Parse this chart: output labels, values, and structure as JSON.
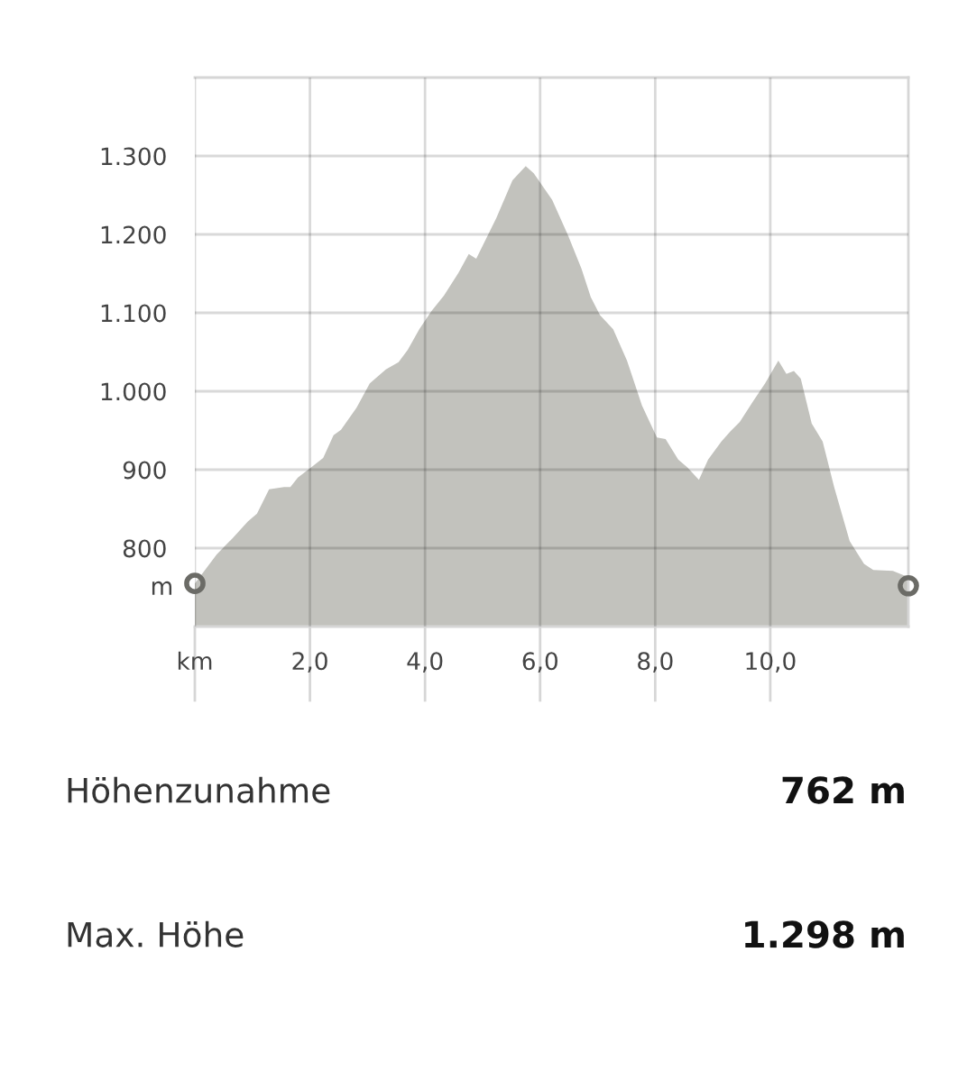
{
  "chart_data": {
    "type": "area",
    "ylabel": "m",
    "grid": true,
    "legend": false,
    "xlim": [
      0,
      12.4
    ],
    "ylim": [
      700,
      1400
    ],
    "xticks": [
      {
        "value": 0,
        "label": "km"
      },
      {
        "value": 2,
        "label": "2,0"
      },
      {
        "value": 4,
        "label": "4,0"
      },
      {
        "value": 6,
        "label": "6,0"
      },
      {
        "value": 8,
        "label": "8,0"
      },
      {
        "value": 10,
        "label": "10,0"
      }
    ],
    "yticks": [
      {
        "value": 800,
        "label": "800"
      },
      {
        "value": 900,
        "label": "900"
      },
      {
        "value": 1000,
        "label": "1.000"
      },
      {
        "value": 1100,
        "label": "1.100"
      },
      {
        "value": 1200,
        "label": "1.200"
      },
      {
        "value": 1300,
        "label": "1.300"
      }
    ],
    "series": [
      {
        "color": "#c2c2bd",
        "x": [
          0,
          0.38,
          0.66,
          0.92,
          1.08,
          1.29,
          1.55,
          1.66,
          1.79,
          2.02,
          2.23,
          2.41,
          2.54,
          2.81,
          3.04,
          3.32,
          3.54,
          3.7,
          3.9,
          4.11,
          4.33,
          4.58,
          4.76,
          4.89,
          5.24,
          5.52,
          5.75,
          5.89,
          6.21,
          6.49,
          6.72,
          6.88,
          7.04,
          7.27,
          7.51,
          7.77,
          8.03,
          8.18,
          8.4,
          8.56,
          8.76,
          8.92,
          9.15,
          9.31,
          9.47,
          9.7,
          9.91,
          10.14,
          10.28,
          10.41,
          10.53,
          10.72,
          10.91,
          11.11,
          11.38,
          11.63,
          11.79,
          12.13,
          12.4
        ],
        "values": [
          755,
          792,
          813,
          834,
          844,
          875,
          878,
          878,
          890,
          903,
          915,
          944,
          951,
          979,
          1010,
          1028,
          1037,
          1053,
          1079,
          1102,
          1122,
          1151,
          1175,
          1169,
          1221,
          1269,
          1287,
          1278,
          1244,
          1198,
          1156,
          1120,
          1097,
          1079,
          1039,
          982,
          941,
          939,
          913,
          903,
          887,
          913,
          936,
          949,
          961,
          987,
          1010,
          1039,
          1022,
          1026,
          1016,
          959,
          936,
          878,
          809,
          780,
          772,
          771,
          763
        ]
      },
      {
        "type": "scatter",
        "color": "#6b6b66",
        "marker": "circle",
        "x": [
          0,
          12.4
        ],
        "values": [
          755,
          752
        ]
      }
    ],
    "annotations": [
      "Höhenzunahme",
      "762 m",
      "Max. Höhe",
      "1.298 m"
    ]
  }
}
